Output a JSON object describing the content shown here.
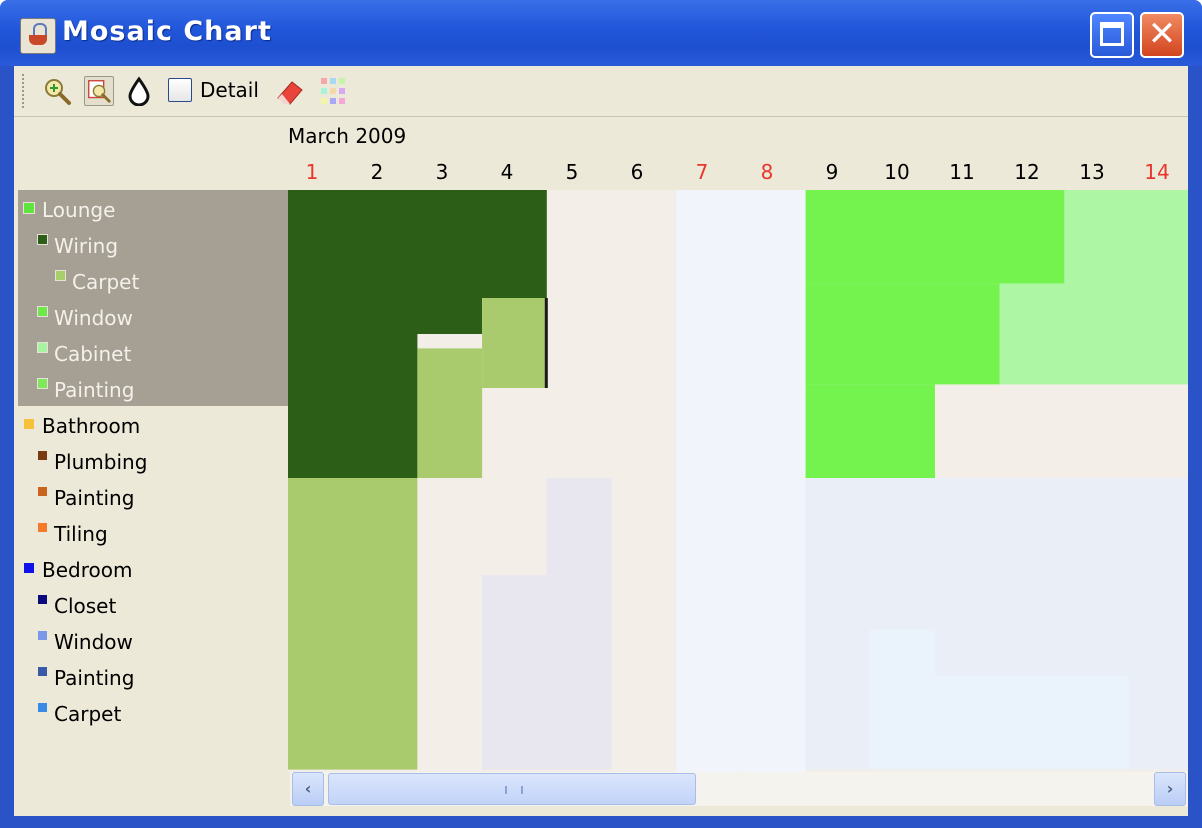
{
  "window": {
    "title": "Mosaic Chart",
    "icon": "java-cup-icon",
    "controls": [
      "maximize-icon",
      "close-icon"
    ],
    "titlebar_color": "#2358dc"
  },
  "toolbar": {
    "tools": [
      "zoom-in-icon",
      "zoom-out-icon",
      "drop-icon",
      "eraser-icon",
      "palette-icon"
    ],
    "detail_label": "Detail",
    "detail_checked": false
  },
  "calendar": {
    "month": "March 2009",
    "days": [
      {
        "label": "1",
        "weekend": true
      },
      {
        "label": "2",
        "weekend": false
      },
      {
        "label": "3",
        "weekend": false
      },
      {
        "label": "4",
        "weekend": false
      },
      {
        "label": "5",
        "weekend": false
      },
      {
        "label": "6",
        "weekend": false
      },
      {
        "label": "7",
        "weekend": true
      },
      {
        "label": "8",
        "weekend": true
      },
      {
        "label": "9",
        "weekend": false
      },
      {
        "label": "10",
        "weekend": false
      },
      {
        "label": "11",
        "weekend": false
      },
      {
        "label": "12",
        "weekend": false
      },
      {
        "label": "13",
        "weekend": false
      },
      {
        "label": "14",
        "weekend": true
      }
    ],
    "weekend_color": "#e8372c"
  },
  "tree": {
    "items": [
      {
        "label": "Lounge",
        "level": 0,
        "color": "#5ee43a",
        "selected": true
      },
      {
        "label": "Wiring",
        "level": 1,
        "color": "#2c5e18",
        "selected": true
      },
      {
        "label": "Carpet",
        "level": 2,
        "color": "#a9cf6a",
        "selected": true
      },
      {
        "label": "Window",
        "level": 1,
        "color": "#6fe84a",
        "selected": true
      },
      {
        "label": "Cabinet",
        "level": 1,
        "color": "#a8f3a0",
        "selected": true
      },
      {
        "label": "Painting",
        "level": 1,
        "color": "#7fe85a",
        "selected": true
      },
      {
        "label": "Bathroom",
        "level": 0,
        "color": "#f6c23a",
        "selected": false
      },
      {
        "label": "Plumbing",
        "level": 1,
        "color": "#7a3a12",
        "selected": false
      },
      {
        "label": "Painting",
        "level": 1,
        "color": "#c8641e",
        "selected": false
      },
      {
        "label": "Tiling",
        "level": 1,
        "color": "#f27a2a",
        "selected": false
      },
      {
        "label": "Bedroom",
        "level": 0,
        "color": "#1010e8",
        "selected": false
      },
      {
        "label": "Closet",
        "level": 1,
        "color": "#0a0a7a",
        "selected": false
      },
      {
        "label": "Window",
        "level": 1,
        "color": "#7a98e8",
        "selected": false
      },
      {
        "label": "Painting",
        "level": 1,
        "color": "#3a5aa8",
        "selected": false
      },
      {
        "label": "Carpet",
        "level": 1,
        "color": "#3a8ae8",
        "selected": false
      }
    ],
    "selected_bg": "#a59f94"
  },
  "mosaic": {
    "background": "#f3eee7",
    "weekend_days": [
      7,
      8
    ],
    "weekend_color": "#f1f4fb",
    "blocks": [
      {
        "task": "Lounge",
        "start_day": 1,
        "end_day": 5,
        "first_row": 0,
        "last_row": 3,
        "color": "#2c5e18"
      },
      {
        "task": "Lounge",
        "start_day": 1,
        "end_day": 4,
        "first_row": 3,
        "last_row": 4,
        "color": "#2c5e18"
      },
      {
        "task": "Lounge",
        "start_day": 1,
        "end_day": 3,
        "first_row": 4,
        "last_row": 8,
        "color": "#2c5e18"
      },
      {
        "task": "Carpet",
        "start_day": 4,
        "end_day": 5,
        "first_row": 3,
        "last_row": 5.5,
        "color": "#a9cb6e"
      },
      {
        "task": "Carpet",
        "start_day": 3,
        "end_day": 4,
        "first_row": 4.4,
        "last_row": 8,
        "color": "#a9cb6e"
      },
      {
        "task": "Carpet",
        "start_day": 1,
        "end_day": 3,
        "first_row": 8,
        "last_row": 16.1,
        "color": "#a9cb6e"
      },
      {
        "task": "Window",
        "start_day": 9,
        "end_day": 13,
        "first_row": 0,
        "last_row": 2.6,
        "color": "#74f24e"
      },
      {
        "task": "Window",
        "start_day": 9,
        "end_day": 12,
        "first_row": 2.6,
        "last_row": 5.4,
        "color": "#74f24e"
      },
      {
        "task": "Window",
        "start_day": 9,
        "end_day": 11,
        "first_row": 5.4,
        "last_row": 8,
        "color": "#74f24e"
      },
      {
        "task": "Cabinet",
        "start_day": 13,
        "end_day": 15,
        "first_row": 0,
        "last_row": 2.6,
        "color": "#adf7a4"
      },
      {
        "task": "Cabinet",
        "start_day": 12,
        "end_day": 15,
        "first_row": 2.6,
        "last_row": 5.4,
        "color": "#adf7a4"
      },
      {
        "task": "Bathroom",
        "start_day": 11,
        "end_day": 15,
        "first_row": 8,
        "last_row": 10.7,
        "color": "#f8ede4"
      },
      {
        "task": "Bedroom",
        "start_day": 5,
        "end_day": 6,
        "first_row": 8,
        "last_row": 16.1,
        "color": "#e8e6ef"
      },
      {
        "task": "Bedroom",
        "start_day": 4,
        "end_day": 5,
        "first_row": 10.7,
        "last_row": 16.1,
        "color": "#e8e6ef"
      },
      {
        "task": "Bedroom",
        "start_day": 9,
        "end_day": 15,
        "first_row": 8,
        "last_row": 16.1,
        "color": "#eaeef6"
      },
      {
        "task": "Bedroom",
        "start_day": 10,
        "end_day": 11,
        "first_row": 12.2,
        "last_row": 16.1,
        "color": "#eaf3fc"
      },
      {
        "task": "Bedroom",
        "start_day": 11,
        "end_day": 14,
        "first_row": 13.5,
        "last_row": 16.1,
        "color": "#eaf3fc"
      }
    ]
  },
  "scrollbar": {
    "left_arrow": "‹",
    "right_arrow": "›",
    "position": 0.0
  }
}
